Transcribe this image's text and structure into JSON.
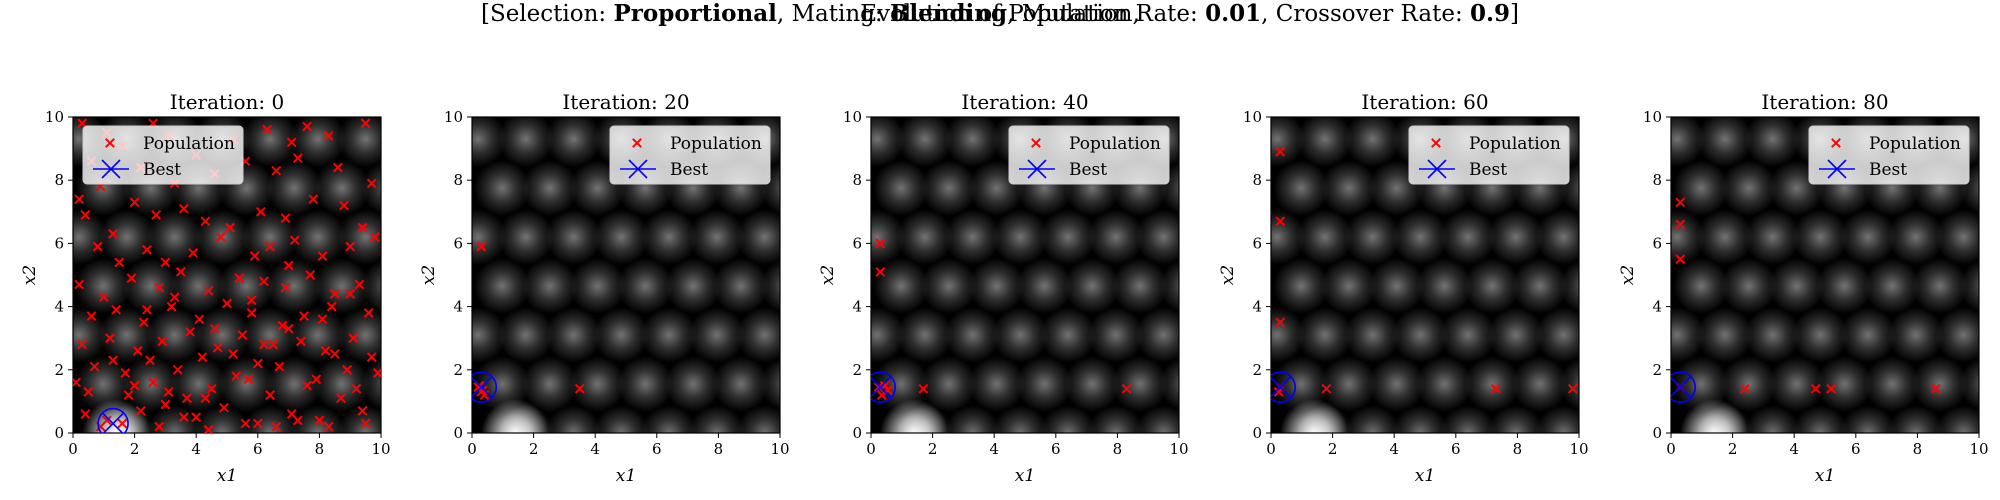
{
  "figure": {
    "title_line1": "Evolution of Population,",
    "title_line2": {
      "open": "[Selection: ",
      "selection": "Proportional",
      "sep1": ", Mating: ",
      "mating": "Blending",
      "sep2": ", Mutation Rate: ",
      "mutation_rate": "0.01",
      "sep3": ", Crossover Rate: ",
      "crossover_rate": "0.9",
      "close": "]"
    }
  },
  "colors": {
    "population": "#ff0000",
    "best": "#0000ff",
    "background": "#000000"
  },
  "chart_data": [
    {
      "type": "scatter",
      "title": "Iteration: 0",
      "xlabel": "x1",
      "ylabel": "x2",
      "xlim": [
        0,
        10
      ],
      "ylim": [
        0,
        10
      ],
      "xticks": [
        0,
        2,
        4,
        6,
        8,
        10
      ],
      "yticks": [
        0,
        2,
        4,
        6,
        8,
        10
      ],
      "legend": [
        "Population",
        "Best"
      ],
      "legend_loc": "upper left",
      "series": [
        {
          "name": "Population",
          "marker": "x",
          "x": [
            0.3,
            1.1,
            2.6,
            3.1,
            0.6,
            1.6,
            4.0,
            5.2,
            6.3,
            7.1,
            7.6,
            8.3,
            9.5,
            0.2,
            0.9,
            2.2,
            3.3,
            4.6,
            5.6,
            6.6,
            7.3,
            8.6,
            9.7,
            0.4,
            1.3,
            2.0,
            2.7,
            3.6,
            4.3,
            5.1,
            6.1,
            6.9,
            7.8,
            8.8,
            9.4,
            0.8,
            1.5,
            2.4,
            3.0,
            3.9,
            4.8,
            5.9,
            6.4,
            7.2,
            8.1,
            9.0,
            9.8,
            0.2,
            1.0,
            1.9,
            2.8,
            3.5,
            4.4,
            5.4,
            6.2,
            7.0,
            7.7,
            8.5,
            9.3,
            0.6,
            1.4,
            2.3,
            3.2,
            4.1,
            5.0,
            5.8,
            6.8,
            7.5,
            8.4,
            9.6,
            0.3,
            1.2,
            2.1,
            2.9,
            3.8,
            4.7,
            5.5,
            6.5,
            7.4,
            8.2,
            9.1,
            0.7,
            1.7,
            2.5,
            3.4,
            4.2,
            5.3,
            6.0,
            6.7,
            7.9,
            8.9,
            9.9,
            0.5,
            1.8,
            2.6,
            3.7,
            4.5,
            5.7,
            6.4,
            7.6,
            8.7,
            9.2,
            0.4,
            1.1,
            2.2,
            3.0,
            4.0,
            4.9,
            6.0,
            7.1,
            8.0,
            9.4,
            0.9,
            1.6,
            2.8,
            3.6,
            4.4,
            5.6,
            6.6,
            7.3,
            8.3,
            9.5,
            0.1,
            2.0,
            3.1,
            4.3,
            5.2,
            6.2,
            7.0,
            8.5,
            9.7,
            1.3,
            2.4,
            3.3,
            4.6,
            5.8,
            6.9,
            8.1,
            9.0
          ],
          "y": [
            9.8,
            9.5,
            9.8,
            9.4,
            8.6,
            9.1,
            8.8,
            9.3,
            9.6,
            9.2,
            9.7,
            9.4,
            9.8,
            7.4,
            7.8,
            8.4,
            7.9,
            8.2,
            8.6,
            8.3,
            8.7,
            8.4,
            7.9,
            6.9,
            6.3,
            7.3,
            6.9,
            7.1,
            6.7,
            6.5,
            7.0,
            6.8,
            7.4,
            7.2,
            6.5,
            5.9,
            5.4,
            5.8,
            5.4,
            5.7,
            6.2,
            5.6,
            5.9,
            6.1,
            5.6,
            5.9,
            6.2,
            4.7,
            4.3,
            4.9,
            4.6,
            5.1,
            4.5,
            4.9,
            4.8,
            5.3,
            5.0,
            4.4,
            4.7,
            3.7,
            3.9,
            3.5,
            4.0,
            3.6,
            4.1,
            3.8,
            3.4,
            3.7,
            4.0,
            3.8,
            2.8,
            3.0,
            2.6,
            2.9,
            3.2,
            2.7,
            3.1,
            2.8,
            2.9,
            2.6,
            3.0,
            2.1,
            1.9,
            2.3,
            2.0,
            2.4,
            1.8,
            2.2,
            2.1,
            1.7,
            2.0,
            1.9,
            1.3,
            1.2,
            1.6,
            1.1,
            1.4,
            1.7,
            1.2,
            1.5,
            1.1,
            1.4,
            0.6,
            0.4,
            0.7,
            0.9,
            0.5,
            0.8,
            0.3,
            0.6,
            0.4,
            0.7,
            0.2,
            0.3,
            0.2,
            0.5,
            0.1,
            0.3,
            0.2,
            0.4,
            0.2,
            0.3,
            1.6,
            1.5,
            1.3,
            1.1,
            2.5,
            2.8,
            3.3,
            2.5,
            2.4,
            2.3,
            3.9,
            4.3,
            3.3,
            4.2,
            4.6,
            3.6,
            4.4
          ]
        },
        {
          "name": "Best",
          "marker": "x-circle",
          "x": [
            1.3
          ],
          "y": [
            0.3
          ]
        }
      ]
    },
    {
      "type": "scatter",
      "title": "Iteration: 20",
      "xlabel": "x1",
      "ylabel": "x2",
      "xlim": [
        0,
        10
      ],
      "ylim": [
        0,
        10
      ],
      "xticks": [
        0,
        2,
        4,
        6,
        8,
        10
      ],
      "yticks": [
        0,
        2,
        4,
        6,
        8,
        10
      ],
      "legend": [
        "Population",
        "Best"
      ],
      "legend_loc": "upper right",
      "series": [
        {
          "name": "Population",
          "marker": "x",
          "x": [
            0.3,
            0.2,
            0.4,
            0.3,
            0.25,
            0.35,
            3.5
          ],
          "y": [
            5.9,
            1.45,
            1.2,
            1.3,
            1.5,
            1.35,
            1.4
          ]
        },
        {
          "name": "Best",
          "marker": "x-circle",
          "x": [
            0.3
          ],
          "y": [
            1.45
          ]
        }
      ]
    },
    {
      "type": "scatter",
      "title": "Iteration: 40",
      "xlabel": "x1",
      "ylabel": "x2",
      "xlim": [
        0,
        10
      ],
      "ylim": [
        0,
        10
      ],
      "xticks": [
        0,
        2,
        4,
        6,
        8,
        10
      ],
      "yticks": [
        0,
        2,
        4,
        6,
        8,
        10
      ],
      "legend": [
        "Population",
        "Best"
      ],
      "legend_loc": "upper right",
      "series": [
        {
          "name": "Population",
          "marker": "x",
          "x": [
            0.3,
            0.3,
            0.25,
            0.45,
            0.35,
            0.55,
            1.7,
            8.3
          ],
          "y": [
            6.0,
            5.1,
            1.45,
            1.5,
            1.2,
            1.35,
            1.4,
            1.4
          ]
        },
        {
          "name": "Best",
          "marker": "x-circle",
          "x": [
            0.3
          ],
          "y": [
            1.45
          ]
        }
      ]
    },
    {
      "type": "scatter",
      "title": "Iteration: 60",
      "xlabel": "x1",
      "ylabel": "x2",
      "xlim": [
        0,
        10
      ],
      "ylim": [
        0,
        10
      ],
      "xticks": [
        0,
        2,
        4,
        6,
        8,
        10
      ],
      "yticks": [
        0,
        2,
        4,
        6,
        8,
        10
      ],
      "legend": [
        "Population",
        "Best"
      ],
      "legend_loc": "upper right",
      "series": [
        {
          "name": "Population",
          "marker": "x",
          "x": [
            0.3,
            0.3,
            0.3,
            0.3,
            0.25,
            1.8,
            7.3,
            9.8
          ],
          "y": [
            8.9,
            6.7,
            3.5,
            1.45,
            1.3,
            1.4,
            1.4,
            1.4
          ]
        },
        {
          "name": "Best",
          "marker": "x-circle",
          "x": [
            0.3
          ],
          "y": [
            1.45
          ]
        }
      ]
    },
    {
      "type": "scatter",
      "title": "Iteration: 80",
      "xlabel": "x1",
      "ylabel": "x2",
      "xlim": [
        0,
        10
      ],
      "ylim": [
        0,
        10
      ],
      "xticks": [
        0,
        2,
        4,
        6,
        8,
        10
      ],
      "yticks": [
        0,
        2,
        4,
        6,
        8,
        10
      ],
      "legend": [
        "Population",
        "Best"
      ],
      "legend_loc": "upper right",
      "series": [
        {
          "name": "Population",
          "marker": "x",
          "x": [
            0.3,
            0.3,
            0.3,
            0.3,
            2.4,
            4.7,
            5.2,
            8.6
          ],
          "y": [
            7.3,
            6.6,
            5.5,
            1.45,
            1.4,
            1.4,
            1.4,
            1.4
          ]
        },
        {
          "name": "Best",
          "marker": "x-circle",
          "x": [
            0.3
          ],
          "y": [
            1.45
          ]
        }
      ]
    }
  ]
}
